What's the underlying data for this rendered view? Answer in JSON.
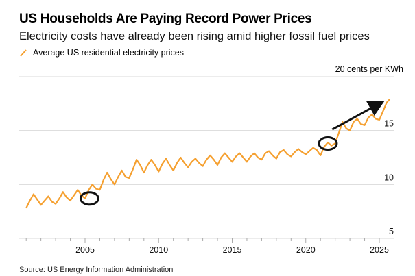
{
  "header": {
    "title": "US Households Are Paying Record Power Prices",
    "subtitle": "Electricity costs have already been rising amid higher fossil fuel prices",
    "unit_label": "20 cents per KWh"
  },
  "footer": {
    "source": "Source: US Energy Information Administration"
  },
  "colors": {
    "series": "#f5a030",
    "annotation": "#111111",
    "grid": "#d9d9d9"
  },
  "chart_data": {
    "type": "line",
    "title": "US Households Are Paying Record Power Prices",
    "subtitle": "Electricity costs have already been rising amid higher fossil fuel prices",
    "xlabel": "",
    "ylabel": "cents per KWh",
    "xlim": [
      2001,
      2025.8
    ],
    "ylim": [
      5,
      20
    ],
    "grid": true,
    "legend": "top-left",
    "x_ticks": [
      2005,
      2010,
      2015,
      2020,
      2025
    ],
    "y_ticks": [
      5,
      10,
      15,
      20
    ],
    "y_tick_labels": [
      "5",
      "10",
      "15",
      "20 cents per KWh"
    ],
    "series": [
      {
        "name": "Average US residential electricity prices",
        "x": [
          2001.0,
          2001.25,
          2001.5,
          2001.75,
          2002.0,
          2002.25,
          2002.5,
          2002.75,
          2003.0,
          2003.25,
          2003.5,
          2003.75,
          2004.0,
          2004.25,
          2004.5,
          2004.75,
          2005.0,
          2005.25,
          2005.5,
          2005.75,
          2006.0,
          2006.25,
          2006.5,
          2006.75,
          2007.0,
          2007.25,
          2007.5,
          2007.75,
          2008.0,
          2008.25,
          2008.5,
          2008.75,
          2009.0,
          2009.25,
          2009.5,
          2009.75,
          2010.0,
          2010.25,
          2010.5,
          2010.75,
          2011.0,
          2011.25,
          2011.5,
          2011.75,
          2012.0,
          2012.25,
          2012.5,
          2012.75,
          2013.0,
          2013.25,
          2013.5,
          2013.75,
          2014.0,
          2014.25,
          2014.5,
          2014.75,
          2015.0,
          2015.25,
          2015.5,
          2015.75,
          2016.0,
          2016.25,
          2016.5,
          2016.75,
          2017.0,
          2017.25,
          2017.5,
          2017.75,
          2018.0,
          2018.25,
          2018.5,
          2018.75,
          2019.0,
          2019.25,
          2019.5,
          2019.75,
          2020.0,
          2020.25,
          2020.5,
          2020.75,
          2021.0,
          2021.25,
          2021.5,
          2021.75,
          2022.0,
          2022.25,
          2022.5,
          2022.75,
          2023.0,
          2023.25,
          2023.5,
          2023.75,
          2024.0,
          2024.25,
          2024.5,
          2024.75,
          2025.0,
          2025.25,
          2025.5,
          2025.7
        ],
        "values": [
          7.8,
          8.5,
          9.1,
          8.6,
          8.1,
          8.5,
          8.9,
          8.4,
          8.2,
          8.7,
          9.3,
          8.8,
          8.5,
          9.0,
          9.5,
          9.0,
          8.7,
          9.5,
          10.0,
          9.6,
          9.5,
          10.4,
          11.1,
          10.5,
          10.0,
          10.7,
          11.3,
          10.7,
          10.6,
          11.4,
          12.3,
          11.8,
          11.1,
          11.8,
          12.3,
          11.8,
          11.2,
          11.9,
          12.4,
          11.8,
          11.3,
          12.0,
          12.5,
          12.0,
          11.6,
          12.1,
          12.4,
          12.0,
          11.7,
          12.3,
          12.7,
          12.3,
          11.8,
          12.5,
          12.9,
          12.5,
          12.1,
          12.6,
          12.9,
          12.5,
          12.1,
          12.6,
          12.9,
          12.5,
          12.3,
          12.9,
          13.1,
          12.7,
          12.4,
          13.0,
          13.2,
          12.8,
          12.6,
          13.0,
          13.3,
          13.0,
          12.8,
          13.1,
          13.4,
          13.2,
          12.7,
          13.5,
          13.9,
          13.6,
          13.8,
          14.8,
          15.8,
          15.2,
          15.0,
          15.8,
          16.1,
          15.6,
          15.5,
          16.2,
          16.5,
          16.1,
          16.0,
          16.8,
          17.6,
          17.9
        ]
      }
    ],
    "annotations": [
      {
        "type": "ellipse",
        "x": 2005.3,
        "y": 8.7
      },
      {
        "type": "ellipse",
        "x": 2021.5,
        "y": 13.8
      },
      {
        "type": "arrow",
        "from": [
          2021.8,
          15.1
        ],
        "to": [
          2025.0,
          17.5
        ]
      }
    ]
  }
}
